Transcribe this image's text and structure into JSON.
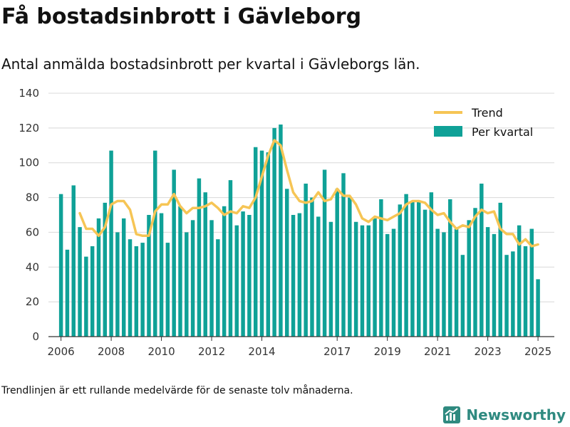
{
  "page": {
    "title": "Få bostadsinbrott i Gävleborg",
    "subtitle": "Antal anmälda bostadsinbrott per kvartal i Gävleborgs län.",
    "footnote": "Trendlinjen är ett rullande medelvärde för de senaste tolv månaderna.",
    "brand": "Newsworthy"
  },
  "colors": {
    "bar": "#0fa197",
    "trend": "#f6c555",
    "grid": "#d8d8d8",
    "axis": "#333333",
    "brand": "#2f8a80"
  },
  "chart_data": {
    "type": "bar",
    "x": [
      2006.0,
      2006.25,
      2006.5,
      2006.75,
      2007.0,
      2007.25,
      2007.5,
      2007.75,
      2008.0,
      2008.25,
      2008.5,
      2008.75,
      2009.0,
      2009.25,
      2009.5,
      2009.75,
      2010.0,
      2010.25,
      2010.5,
      2010.75,
      2011.0,
      2011.25,
      2011.5,
      2011.75,
      2012.0,
      2012.25,
      2012.5,
      2012.75,
      2013.0,
      2013.25,
      2013.5,
      2013.75,
      2014.0,
      2014.25,
      2014.5,
      2014.75,
      2015.0,
      2015.25,
      2015.5,
      2015.75,
      2016.0,
      2016.25,
      2016.5,
      2016.75,
      2017.0,
      2017.25,
      2017.5,
      2017.75,
      2018.0,
      2018.25,
      2018.5,
      2018.75,
      2019.0,
      2019.25,
      2019.5,
      2019.75,
      2020.0,
      2020.25,
      2020.5,
      2020.75,
      2021.0,
      2021.25,
      2021.5,
      2021.75,
      2022.0,
      2022.25,
      2022.5,
      2022.75,
      2023.0,
      2023.25,
      2023.5,
      2023.75,
      2024.0,
      2024.25,
      2024.5,
      2024.75,
      2025.0
    ],
    "series": [
      {
        "name": "Per kvartal",
        "type": "bar",
        "values": [
          82,
          50,
          87,
          63,
          46,
          52,
          68,
          77,
          107,
          60,
          68,
          56,
          52,
          54,
          70,
          107,
          71,
          54,
          96,
          75,
          60,
          67,
          91,
          83,
          67,
          56,
          75,
          90,
          64,
          72,
          70,
          109,
          107,
          106,
          120,
          122,
          85,
          70,
          71,
          88,
          80,
          69,
          96,
          66,
          85,
          94,
          80,
          66,
          64,
          64,
          68,
          79,
          59,
          62,
          76,
          82,
          78,
          78,
          73,
          83,
          62,
          60,
          79,
          62,
          47,
          67,
          74,
          88,
          63,
          59,
          77,
          47,
          49,
          64,
          52,
          62,
          33
        ]
      },
      {
        "name": "Trend",
        "type": "line",
        "x": [
          2006.75,
          2007.0,
          2007.25,
          2007.5,
          2007.75,
          2008.0,
          2008.25,
          2008.5,
          2008.75,
          2009.0,
          2009.25,
          2009.5,
          2009.75,
          2010.0,
          2010.25,
          2010.5,
          2010.75,
          2011.0,
          2011.25,
          2011.5,
          2011.75,
          2012.0,
          2012.25,
          2012.5,
          2012.75,
          2013.0,
          2013.25,
          2013.5,
          2013.75,
          2014.0,
          2014.25,
          2014.5,
          2014.75,
          2015.0,
          2015.25,
          2015.5,
          2015.75,
          2016.0,
          2016.25,
          2016.5,
          2016.75,
          2017.0,
          2017.25,
          2017.5,
          2017.75,
          2018.0,
          2018.25,
          2018.5,
          2018.75,
          2019.0,
          2019.25,
          2019.5,
          2019.75,
          2020.0,
          2020.25,
          2020.5,
          2020.75,
          2021.0,
          2021.25,
          2021.5,
          2021.75,
          2022.0,
          2022.25,
          2022.5,
          2022.75,
          2023.0,
          2023.25,
          2023.5,
          2023.75,
          2024.0,
          2024.25,
          2024.5,
          2024.75,
          2025.0
        ],
        "values": [
          71,
          62,
          62,
          58,
          63,
          76,
          78,
          78,
          73,
          59,
          58,
          58,
          72,
          76,
          76,
          82,
          75,
          71,
          74,
          74,
          75,
          77,
          74,
          70,
          72,
          71,
          75,
          74,
          80,
          92,
          104,
          113,
          110,
          96,
          83,
          78,
          77,
          78,
          83,
          78,
          79,
          85,
          81,
          81,
          76,
          68,
          66,
          69,
          68,
          67,
          69,
          71,
          76,
          78,
          78,
          77,
          73,
          70,
          71,
          66,
          62,
          64,
          63,
          69,
          73,
          71,
          72,
          62,
          59,
          59,
          53,
          56,
          52,
          53
        ]
      }
    ],
    "xticks": [
      2006,
      2008,
      2010,
      2012,
      2014,
      2017,
      2019,
      2021,
      2023,
      2025
    ],
    "xlim": [
      2005.5,
      2025.65
    ],
    "ylim": [
      0,
      140
    ],
    "yticks": [
      0,
      20,
      40,
      60,
      80,
      100,
      120,
      140
    ],
    "grid": "horizontal",
    "legend_position": "top-right",
    "xlabel": "",
    "ylabel": ""
  }
}
